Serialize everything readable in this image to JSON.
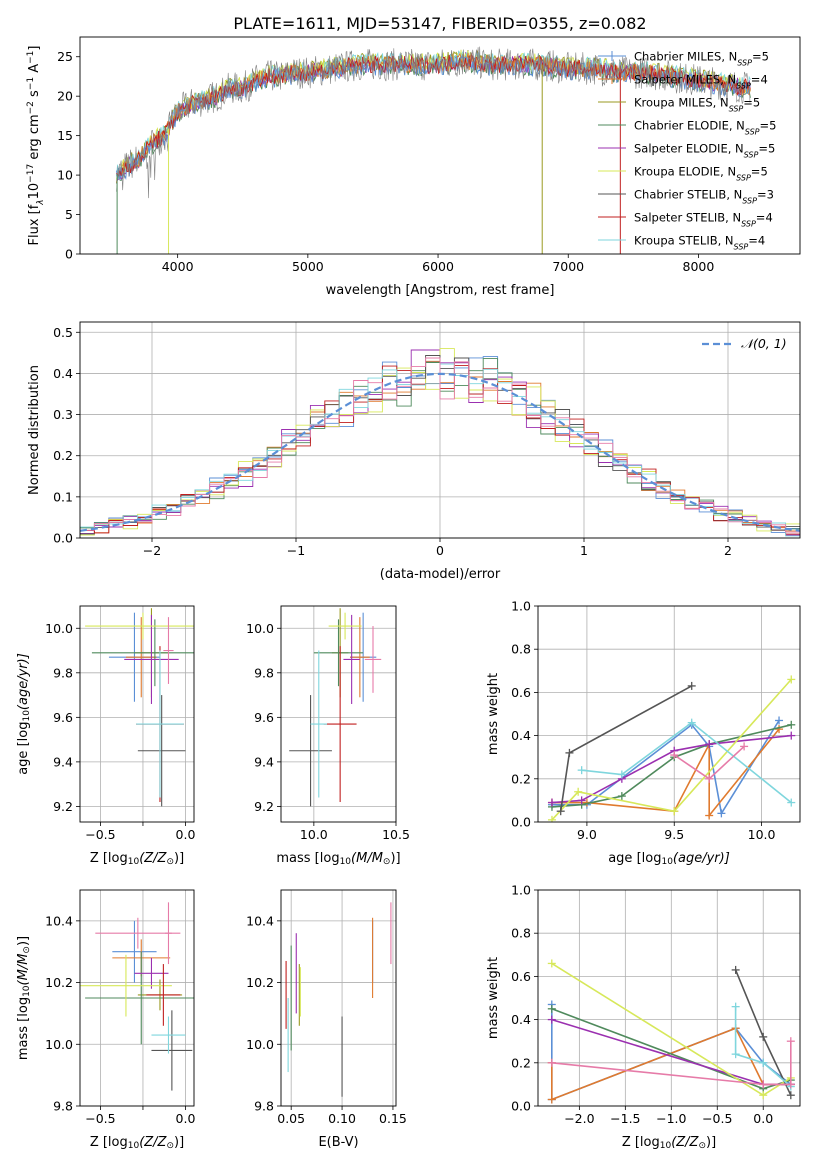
{
  "figure": {
    "title": "PLATE=1611, MJD=53147, FIBERID=0355, z=0.082"
  },
  "colors": {
    "series": [
      "#5b8fd6",
      "#e07a2e",
      "#9a9a20",
      "#4f8a5c",
      "#9b30b0",
      "#d7e85a",
      "#555555",
      "#c01f1f",
      "#7fd6dd"
    ],
    "hist_extra": "#e67ba8",
    "gaussian": "#5b8fd6",
    "grid": "#b0b0b0"
  },
  "chart_data": [
    {
      "id": "spectrum",
      "type": "line",
      "xlabel": "wavelength [Angstrom, rest frame]",
      "ylabel_parts": [
        "Flux [f",
        "λ",
        "10",
        "−17",
        " erg cm",
        "−2",
        " s",
        "−1",
        " A",
        "−1",
        "]"
      ],
      "xlim": [
        3250,
        8780
      ],
      "ylim": [
        0,
        27.5
      ],
      "xticks": [
        4000,
        5000,
        6000,
        7000,
        8000
      ],
      "yticks": [
        0,
        5,
        10,
        15,
        20,
        25
      ],
      "grid": false,
      "legend_position": "right",
      "legend": [
        {
          "name": "Chabrier MILES",
          "nssp": "5"
        },
        {
          "name": "Salpeter MILES",
          "nssp": "4"
        },
        {
          "name": "Kroupa MILES",
          "nssp": "5"
        },
        {
          "name": "Chabrier ELODIE",
          "nssp": "5"
        },
        {
          "name": "Salpeter ELODIE",
          "nssp": "5"
        },
        {
          "name": "Kroupa ELODIE",
          "nssp": "5"
        },
        {
          "name": "Chabrier STELIB",
          "nssp": "3"
        },
        {
          "name": "Salpeter STELIB",
          "nssp": "4"
        },
        {
          "name": "Kroupa STELIB",
          "nssp": "4"
        }
      ],
      "continuum": {
        "x": [
          3530,
          3600,
          3700,
          3800,
          3900,
          4000,
          4100,
          4200,
          4300,
          4400,
          4500,
          4600,
          4700,
          4800,
          4900,
          5000,
          5200,
          5400,
          5600,
          5800,
          6000,
          6200,
          6400,
          6600,
          6800,
          7000,
          7200,
          7400,
          7600,
          7800,
          8000,
          8200,
          8400
        ],
        "y": [
          10,
          11,
          12,
          14,
          15,
          18,
          19,
          19.5,
          20,
          21,
          21,
          22,
          22.5,
          22.5,
          23,
          23,
          23.5,
          24,
          24,
          24,
          24,
          24.5,
          24,
          24,
          24,
          23.5,
          23.5,
          23,
          23,
          22.5,
          22,
          21.5,
          21
        ]
      }
    },
    {
      "id": "residuals",
      "type": "histogram",
      "xlabel": "(data-model)/error",
      "ylabel": "Normed distribution",
      "xlim": [
        -2.5,
        2.5
      ],
      "ylim": [
        0,
        0.525
      ],
      "xticks": [
        -2,
        -1,
        0,
        1,
        2
      ],
      "xtick_labels": [
        "−2",
        "−1",
        "0",
        "1",
        "2"
      ],
      "yticks": [
        0.0,
        0.1,
        0.2,
        0.3,
        0.4,
        0.5
      ],
      "ytick_labels": [
        "0.0",
        "0.1",
        "0.2",
        "0.3",
        "0.4",
        "0.5"
      ],
      "bin_width": 0.1,
      "grid": true,
      "legend_position": "top-right",
      "legend_label": "𝒩(0, 1)"
    },
    {
      "id": "age-vs-Z",
      "type": "scatter",
      "xlabel": "Z [log",
      "xlabel_sub": "10",
      "xlabel_rest": "(Z/Z",
      "xlabel_sun": "⊙",
      "xlabel_end": ")]",
      "ylabel": "age  [log",
      "ylabel_sub": "10",
      "ylabel_rest": "(age/yr)]",
      "xlim": [
        -0.62,
        0.05
      ],
      "ylim": [
        9.13,
        10.1
      ],
      "xticks": [
        -0.5,
        -0.25,
        0.0
      ],
      "xtick_labels": [
        "−0.5",
        "",
        "0.0"
      ],
      "yticks": [
        9.2,
        9.4,
        9.6,
        9.8,
        10.0
      ],
      "ytick_labels": [
        "9.2",
        "9.4",
        "9.6",
        "9.8",
        "10.0"
      ],
      "points": [
        {
          "x": -0.3,
          "y": 9.87,
          "xerr": 0.15,
          "yerr": 0.2,
          "c": 0
        },
        {
          "x": -0.26,
          "y": 9.87,
          "xerr": 0.09,
          "yerr": 0.18,
          "c": 1
        },
        {
          "x": -0.2,
          "y": 9.89,
          "xerr": 0.1,
          "yerr": 0.2,
          "c": 2
        },
        {
          "x": -0.18,
          "y": 9.89,
          "xerr": 0.37,
          "yerr": 0.15,
          "c": 3
        },
        {
          "x": -0.2,
          "y": 9.86,
          "xerr": 0.16,
          "yerr": 0.2,
          "c": 4
        },
        {
          "x": -0.25,
          "y": 10.01,
          "xerr": 0.34,
          "yerr": 0.06,
          "c": 5
        },
        {
          "x": -0.14,
          "y": 9.45,
          "xerr": 0.14,
          "yerr": 0.25,
          "c": 6
        },
        {
          "x": -0.15,
          "y": 9.57,
          "xerr": 0.14,
          "yerr": 0.35,
          "c": 7
        },
        {
          "x": -0.15,
          "y": 9.57,
          "xerr": 0.14,
          "yerr": 0.33,
          "c": 8
        },
        {
          "x": -0.1,
          "y": 9.9,
          "xerr": 0.03,
          "yerr": 0.15,
          "c": 9
        }
      ]
    },
    {
      "id": "age-vs-mass",
      "type": "scatter",
      "xlabel": "mass [log",
      "xlabel_sub": "10",
      "xlabel_rest": "(M/M",
      "xlabel_sun": "⊙",
      "xlabel_end": ")]",
      "xlim": [
        9.8,
        10.5
      ],
      "ylim": [
        9.13,
        10.1
      ],
      "xticks": [
        10.0,
        10.5
      ],
      "xtick_labels": [
        "10.0",
        "10.5"
      ],
      "yticks": [
        9.2,
        9.4,
        9.6,
        9.8,
        10.0
      ],
      "ytick_labels": [
        "9.2",
        "9.4",
        "9.6",
        "9.8",
        "10.0"
      ],
      "points": [
        {
          "x": 10.3,
          "y": 9.87,
          "xerr": 0.08,
          "yerr": 0.2,
          "c": 0
        },
        {
          "x": 10.28,
          "y": 9.87,
          "xerr": 0.06,
          "yerr": 0.18,
          "c": 1
        },
        {
          "x": 10.16,
          "y": 9.89,
          "xerr": 0.05,
          "yerr": 0.2,
          "c": 2
        },
        {
          "x": 10.15,
          "y": 9.89,
          "xerr": 0.15,
          "yerr": 0.15,
          "c": 3
        },
        {
          "x": 10.23,
          "y": 9.86,
          "xerr": 0.05,
          "yerr": 0.2,
          "c": 4
        },
        {
          "x": 10.19,
          "y": 10.01,
          "xerr": 0.1,
          "yerr": 0.06,
          "c": 5
        },
        {
          "x": 9.98,
          "y": 9.45,
          "xerr": 0.13,
          "yerr": 0.25,
          "c": 6
        },
        {
          "x": 10.16,
          "y": 9.57,
          "xerr": 0.1,
          "yerr": 0.35,
          "c": 7
        },
        {
          "x": 10.03,
          "y": 9.57,
          "xerr": 0.05,
          "yerr": 0.33,
          "c": 8
        },
        {
          "x": 10.36,
          "y": 9.86,
          "xerr": 0.05,
          "yerr": 0.15,
          "c": 9
        }
      ]
    },
    {
      "id": "massweight-vs-age",
      "type": "line",
      "xlabel": "age  [log",
      "xlabel_sub": "10",
      "xlabel_rest": "(age/yr)]",
      "ylabel": "mass weight",
      "xlim": [
        8.72,
        10.22
      ],
      "ylim": [
        0,
        1
      ],
      "xticks": [
        9.0,
        9.5,
        10.0
      ],
      "xtick_labels": [
        "9.0",
        "9.5",
        "10.0"
      ],
      "yticks": [
        0,
        0.2,
        0.4,
        0.6,
        0.8,
        1.0
      ],
      "ytick_labels": [
        "0.0",
        "0.2",
        "0.4",
        "0.6",
        "0.8",
        "1.0"
      ],
      "series": [
        {
          "c": 0,
          "x": [
            8.8,
            9.0,
            9.6,
            9.7,
            9.77,
            10.1
          ],
          "y": [
            0.08,
            0.08,
            0.45,
            0.35,
            0.04,
            0.47
          ]
        },
        {
          "c": 1,
          "x": [
            8.8,
            9.0,
            9.5,
            9.7,
            9.7,
            10.1
          ],
          "y": [
            0.09,
            0.09,
            0.05,
            0.36,
            0.03,
            0.43
          ]
        },
        {
          "c": 3,
          "x": [
            8.8,
            8.97,
            9.2,
            9.5,
            9.7,
            10.17
          ],
          "y": [
            0.07,
            0.08,
            0.12,
            0.3,
            0.36,
            0.45
          ]
        },
        {
          "c": 4,
          "x": [
            8.8,
            8.97,
            9.2,
            9.5,
            9.7,
            10.17
          ],
          "y": [
            0.09,
            0.1,
            0.2,
            0.33,
            0.36,
            0.4
          ]
        },
        {
          "c": 5,
          "x": [
            8.8,
            8.95,
            9.5,
            10.17
          ],
          "y": [
            0.01,
            0.14,
            0.05,
            0.66
          ]
        },
        {
          "c": 6,
          "x": [
            8.85,
            8.9,
            9.6
          ],
          "y": [
            0.05,
            0.32,
            0.63
          ]
        },
        {
          "c": 8,
          "x": [
            8.97,
            9.2,
            9.6,
            10.17
          ],
          "y": [
            0.24,
            0.22,
            0.46,
            0.09
          ]
        },
        {
          "c": 9,
          "x": [
            9.5,
            9.7,
            9.9
          ],
          "y": [
            0.31,
            0.2,
            0.35
          ]
        }
      ]
    },
    {
      "id": "mass-vs-Z",
      "type": "scatter",
      "xlabel": "Z [log",
      "xlabel_sub": "10",
      "xlabel_rest": "(Z/Z",
      "xlabel_sun": "⊙",
      "xlabel_end": ")]",
      "ylabel": "mass [log",
      "ylabel_sub": "10",
      "ylabel_rest": "(M/M",
      "ylabel_sun": "⊙",
      "ylabel_end": ")]",
      "xlim": [
        -0.62,
        0.05
      ],
      "ylim": [
        9.8,
        10.5
      ],
      "xticks": [
        -0.5,
        -0.25,
        0.0
      ],
      "xtick_labels": [
        "−0.5",
        "",
        "0.0"
      ],
      "yticks": [
        9.8,
        10.0,
        10.2,
        10.4
      ],
      "ytick_labels": [
        "9.8",
        "10.0",
        "10.2",
        "10.4"
      ],
      "points": [
        {
          "x": -0.3,
          "y": 10.3,
          "xerr": 0.13,
          "yerr": 0.1,
          "c": 0
        },
        {
          "x": -0.26,
          "y": 10.28,
          "xerr": 0.17,
          "yerr": 0.06,
          "c": 1
        },
        {
          "x": -0.15,
          "y": 10.16,
          "xerr": 0.13,
          "yerr": 0.05,
          "c": 2
        },
        {
          "x": -0.26,
          "y": 10.15,
          "xerr": 0.33,
          "yerr": 0.15,
          "c": 3
        },
        {
          "x": -0.2,
          "y": 10.23,
          "xerr": 0.1,
          "yerr": 0.05,
          "c": 4
        },
        {
          "x": -0.35,
          "y": 10.19,
          "xerr": 0.27,
          "yerr": 0.1,
          "c": 5
        },
        {
          "x": -0.08,
          "y": 9.98,
          "xerr": 0.12,
          "yerr": 0.13,
          "c": 6
        },
        {
          "x": -0.13,
          "y": 10.16,
          "xerr": 0.1,
          "yerr": 0.1,
          "c": 7
        },
        {
          "x": -0.1,
          "y": 10.03,
          "xerr": 0.1,
          "yerr": 0.06,
          "c": 8
        },
        {
          "x": -0.28,
          "y": 10.36,
          "xerr": 0.25,
          "yerr": 0.05,
          "c": 9
        },
        {
          "x": -0.1,
          "y": 10.36,
          "xerr": 0.02,
          "yerr": 0.1,
          "c": 9
        }
      ]
    },
    {
      "id": "mass-vs-ebv",
      "type": "scatter",
      "xlabel": "E(B-V)",
      "xlim": [
        0.04,
        0.153
      ],
      "ylim": [
        9.8,
        10.5
      ],
      "xticks": [
        0.05,
        0.1,
        0.15
      ],
      "xtick_labels": [
        "0.05",
        "0.10",
        "0.15"
      ],
      "yticks": [
        9.8,
        10.0,
        10.2,
        10.4
      ],
      "ytick_labels": [
        "9.8",
        "10.0",
        "10.2",
        "10.4"
      ],
      "points": [
        {
          "x": 0.13,
          "y": 10.3,
          "yerr": 0.1,
          "c": 0
        },
        {
          "x": 0.13,
          "y": 10.28,
          "yerr": 0.13,
          "c": 1
        },
        {
          "x": 0.058,
          "y": 10.16,
          "yerr": 0.1,
          "c": 2
        },
        {
          "x": 0.05,
          "y": 10.15,
          "yerr": 0.17,
          "c": 3
        },
        {
          "x": 0.055,
          "y": 10.23,
          "yerr": 0.13,
          "c": 4
        },
        {
          "x": 0.059,
          "y": 10.17,
          "yerr": 0.08,
          "c": 5
        },
        {
          "x": 0.1,
          "y": 9.96,
          "yerr": 0.13,
          "c": 6
        },
        {
          "x": 0.045,
          "y": 10.16,
          "yerr": 0.11,
          "c": 7
        },
        {
          "x": 0.047,
          "y": 10.03,
          "yerr": 0.12,
          "c": 8
        },
        {
          "x": 0.148,
          "y": 10.36,
          "yerr": 0.1,
          "c": 9
        }
      ]
    },
    {
      "id": "massweight-vs-Z",
      "type": "line",
      "xlabel": "Z [log",
      "xlabel_sub": "10",
      "xlabel_rest": "(Z/Z",
      "xlabel_sun": "⊙",
      "xlabel_end": ")]",
      "ylabel": "mass weight",
      "xlim": [
        -2.45,
        0.4
      ],
      "ylim": [
        0,
        1
      ],
      "xticks": [
        -2.0,
        -1.5,
        -1.0,
        -0.5,
        0.0
      ],
      "xtick_labels": [
        "−2.0",
        "−1.5",
        "−1.0",
        "−0.5",
        "0.0"
      ],
      "yticks": [
        0,
        0.2,
        0.4,
        0.6,
        0.8,
        1.0
      ],
      "ytick_labels": [
        "0.0",
        "0.2",
        "0.4",
        "0.6",
        "0.8",
        "1.0"
      ],
      "series": [
        {
          "c": 0,
          "x": [
            -2.3,
            -2.3,
            -0.3,
            0.0,
            0.3
          ],
          "y": [
            0.47,
            0.03,
            0.36,
            0.2,
            0.1
          ]
        },
        {
          "c": 1,
          "x": [
            -2.3,
            -2.3,
            -0.3,
            0.0,
            0.3
          ],
          "y": [
            0.2,
            0.03,
            0.36,
            0.1,
            0.1
          ]
        },
        {
          "c": 3,
          "x": [
            -2.3,
            0.0,
            0.3
          ],
          "y": [
            0.45,
            0.08,
            0.12
          ]
        },
        {
          "c": 4,
          "x": [
            -2.3,
            0.0,
            0.3
          ],
          "y": [
            0.4,
            0.1,
            0.1
          ]
        },
        {
          "c": 5,
          "x": [
            -2.3,
            0.0,
            0.3
          ],
          "y": [
            0.66,
            0.05,
            0.13
          ]
        },
        {
          "c": 6,
          "x": [
            -0.3,
            0.0,
            0.3
          ],
          "y": [
            0.63,
            0.32,
            0.05
          ]
        },
        {
          "c": 8,
          "x": [
            -0.3,
            -0.3,
            0.0,
            0.3
          ],
          "y": [
            0.46,
            0.24,
            0.2,
            0.09
          ]
        },
        {
          "c": 9,
          "x": [
            -2.3,
            0.0,
            0.3,
            0.3
          ],
          "y": [
            0.2,
            0.1,
            0.1,
            0.3
          ]
        }
      ]
    }
  ]
}
